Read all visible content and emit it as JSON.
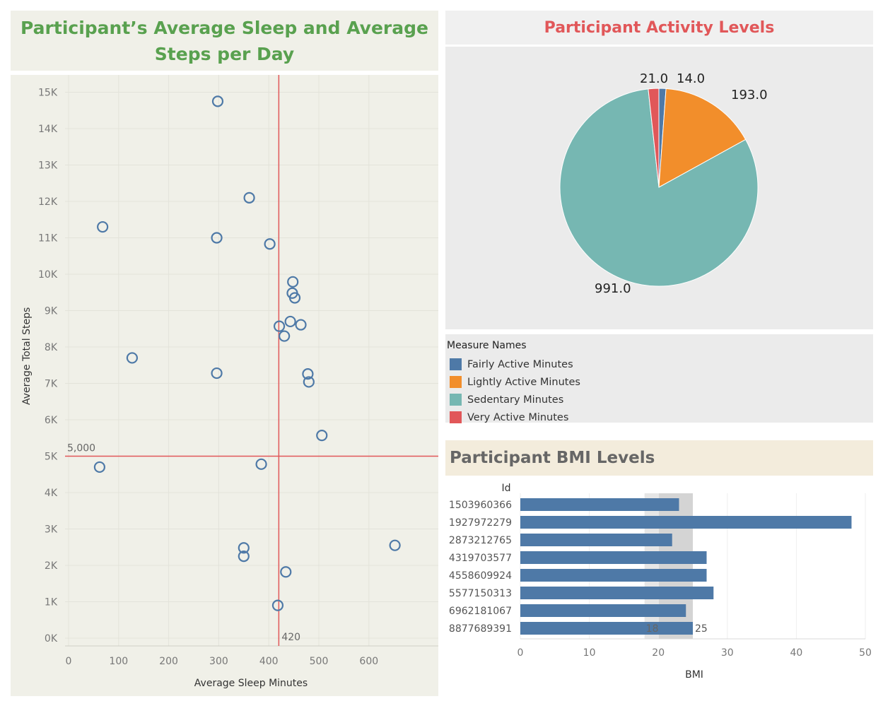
{
  "sleep_title": "Participant’s Average Sleep and Average Steps per Day",
  "activity_title": "Participant Activity Levels",
  "bmi_title": "Participant BMI Levels",
  "legend": {
    "title": "Measure Names",
    "items": [
      {
        "label": "Fairly Active Minutes",
        "color": "#4e79a7"
      },
      {
        "label": "Lightly Active Minutes",
        "color": "#f28e2b"
      },
      {
        "label": "Sedentary Minutes",
        "color": "#76b7b2"
      },
      {
        "label": "Very Active Minutes",
        "color": "#e15759"
      }
    ]
  },
  "chart_data": [
    {
      "type": "scatter",
      "title": "Participant’s Average Sleep and Average Steps per Day",
      "xlabel": "Average Sleep Minutes",
      "ylabel": "Average Total Steps",
      "xlim": [
        0,
        700
      ],
      "ylim": [
        0,
        15500
      ],
      "xticks": [
        0,
        100,
        200,
        300,
        400,
        500,
        600
      ],
      "yticks": [
        0,
        1000,
        2000,
        3000,
        4000,
        5000,
        6000,
        7000,
        8000,
        9000,
        10000,
        11000,
        12000,
        13000,
        14000,
        15000
      ],
      "ytick_labels": [
        "0K",
        "1K",
        "2K",
        "3K",
        "4K",
        "5K",
        "6K",
        "7K",
        "8K",
        "9K",
        "10K",
        "11K",
        "12K",
        "13K",
        "14K",
        "15K"
      ],
      "reference_lines": [
        {
          "axis": "y",
          "value": 5000,
          "label": "5,000",
          "color": "#e15759"
        },
        {
          "axis": "x",
          "value": 420,
          "label": "420",
          "color": "#e15759"
        }
      ],
      "mark_color": "#4e79a7",
      "points": [
        {
          "x": 62,
          "y": 4700
        },
        {
          "x": 68,
          "y": 11300
        },
        {
          "x": 127,
          "y": 7700
        },
        {
          "x": 296,
          "y": 7280
        },
        {
          "x": 296,
          "y": 11000
        },
        {
          "x": 298,
          "y": 14750
        },
        {
          "x": 350,
          "y": 2480
        },
        {
          "x": 350,
          "y": 2250
        },
        {
          "x": 361,
          "y": 12100
        },
        {
          "x": 385,
          "y": 4780
        },
        {
          "x": 402,
          "y": 10830
        },
        {
          "x": 418,
          "y": 900
        },
        {
          "x": 421,
          "y": 8570
        },
        {
          "x": 431,
          "y": 8300
        },
        {
          "x": 434,
          "y": 1820
        },
        {
          "x": 443,
          "y": 8700
        },
        {
          "x": 447,
          "y": 9480
        },
        {
          "x": 448,
          "y": 9790
        },
        {
          "x": 452,
          "y": 9350
        },
        {
          "x": 464,
          "y": 8610
        },
        {
          "x": 478,
          "y": 7260
        },
        {
          "x": 480,
          "y": 7040
        },
        {
          "x": 506,
          "y": 5570
        },
        {
          "x": 652,
          "y": 2550
        }
      ]
    },
    {
      "type": "pie",
      "title": "Participant Activity Levels",
      "slices": [
        {
          "label": "Fairly Active Minutes",
          "value": 14.0,
          "display": "14.0",
          "color": "#4e79a7"
        },
        {
          "label": "Lightly Active Minutes",
          "value": 193.0,
          "display": "193.0",
          "color": "#f28e2b"
        },
        {
          "label": "Sedentary Minutes",
          "value": 991.0,
          "display": "991.0",
          "color": "#76b7b2"
        },
        {
          "label": "Very Active Minutes",
          "value": 21.0,
          "display": "21.0",
          "color": "#e15759"
        }
      ]
    },
    {
      "type": "bar",
      "orientation": "horizontal",
      "title": "Participant BMI Levels",
      "category_header": "Id",
      "xlabel": "BMI",
      "xlim": [
        0,
        50
      ],
      "xticks": [
        0,
        10,
        20,
        30,
        40,
        50
      ],
      "bar_color": "#4e79a7",
      "reference_band": {
        "from": 18,
        "to": 25,
        "labels": [
          "18",
          "25"
        ]
      },
      "categories": [
        "1503960366",
        "1927972279",
        "2873212765",
        "4319703577",
        "4558609924",
        "5577150313",
        "6962181067",
        "8877689391"
      ],
      "values": [
        23,
        48,
        22,
        27,
        27,
        28,
        24,
        25
      ]
    }
  ]
}
